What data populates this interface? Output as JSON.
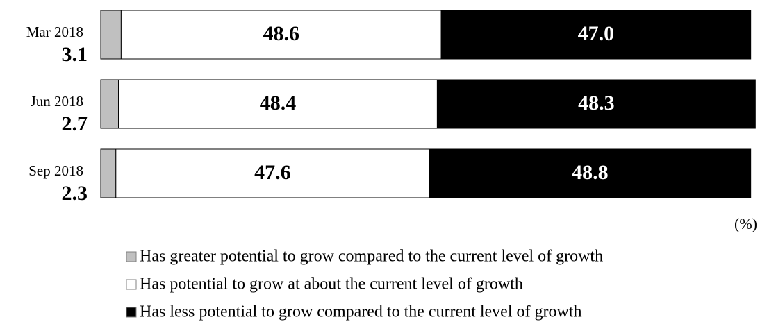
{
  "chart_data": {
    "type": "stacked-bar-horizontal",
    "categories": [
      "Mar 2018",
      "Jun 2018",
      "Sep 2018"
    ],
    "unit_label": "(%)",
    "xlim": [
      0,
      100
    ],
    "series": [
      {
        "name": "Has greater potential to grow compared to the current level of growth",
        "color": "#c0c0c0",
        "values": [
          3.1,
          2.7,
          2.3
        ]
      },
      {
        "name": "Has potential to grow at about the current level of growth",
        "color": "#ffffff",
        "values": [
          48.6,
          48.4,
          47.6
        ]
      },
      {
        "name": "Has less potential to grow compared to the current level of growth",
        "color": "#000000",
        "values": [
          47.0,
          48.3,
          48.8
        ],
        "value_labels": [
          "47.0",
          "48.3",
          "48.8"
        ]
      }
    ]
  }
}
